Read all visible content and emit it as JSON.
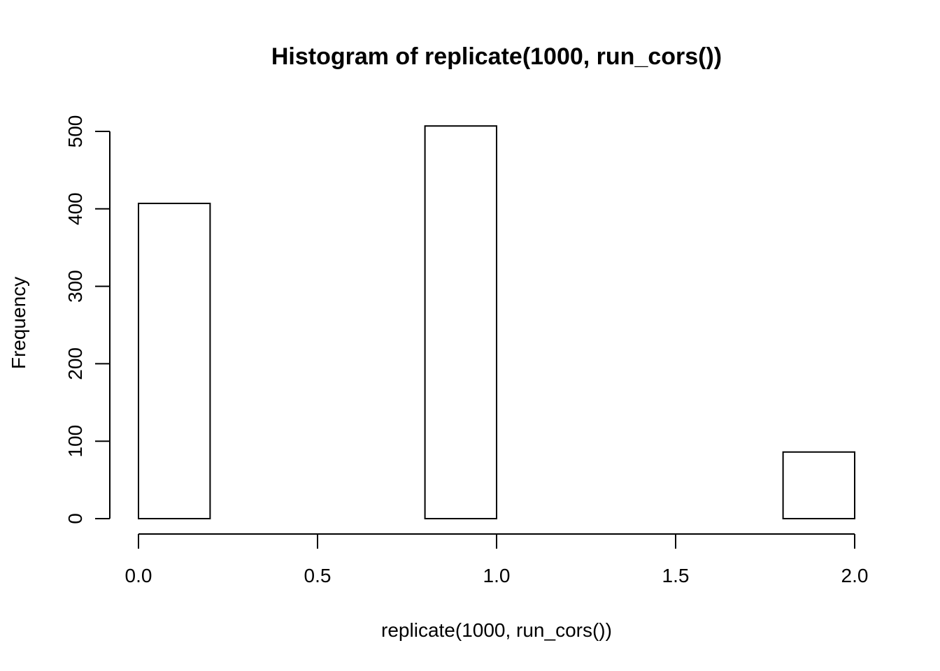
{
  "chart_data": {
    "type": "bar",
    "title": "Histogram of replicate(1000, run_cors())",
    "xlabel": "replicate(1000, run_cors())",
    "ylabel": "Frequency",
    "bins": [
      {
        "x0": 0.0,
        "x1": 0.2,
        "count": 407
      },
      {
        "x0": 0.2,
        "x1": 0.4,
        "count": 0
      },
      {
        "x0": 0.4,
        "x1": 0.6,
        "count": 0
      },
      {
        "x0": 0.6,
        "x1": 0.8,
        "count": 0
      },
      {
        "x0": 0.8,
        "x1": 1.0,
        "count": 507
      },
      {
        "x0": 1.0,
        "x1": 1.2,
        "count": 0
      },
      {
        "x0": 1.2,
        "x1": 1.4,
        "count": 0
      },
      {
        "x0": 1.4,
        "x1": 1.6,
        "count": 0
      },
      {
        "x0": 1.6,
        "x1": 1.8,
        "count": 0
      },
      {
        "x0": 1.8,
        "x1": 2.0,
        "count": 86
      }
    ],
    "xlim": [
      0.0,
      2.0
    ],
    "ylim": [
      0,
      500
    ],
    "x_ticks": [
      0.0,
      0.5,
      1.0,
      1.5,
      2.0
    ],
    "x_tick_labels": [
      "0.0",
      "0.5",
      "1.0",
      "1.5",
      "2.0"
    ],
    "y_ticks": [
      0,
      100,
      200,
      300,
      400,
      500
    ],
    "y_tick_labels": [
      "0",
      "100",
      "200",
      "300",
      "400",
      "500"
    ],
    "grid": false,
    "bar_fill": "#ffffff",
    "bar_stroke": "#000000"
  }
}
